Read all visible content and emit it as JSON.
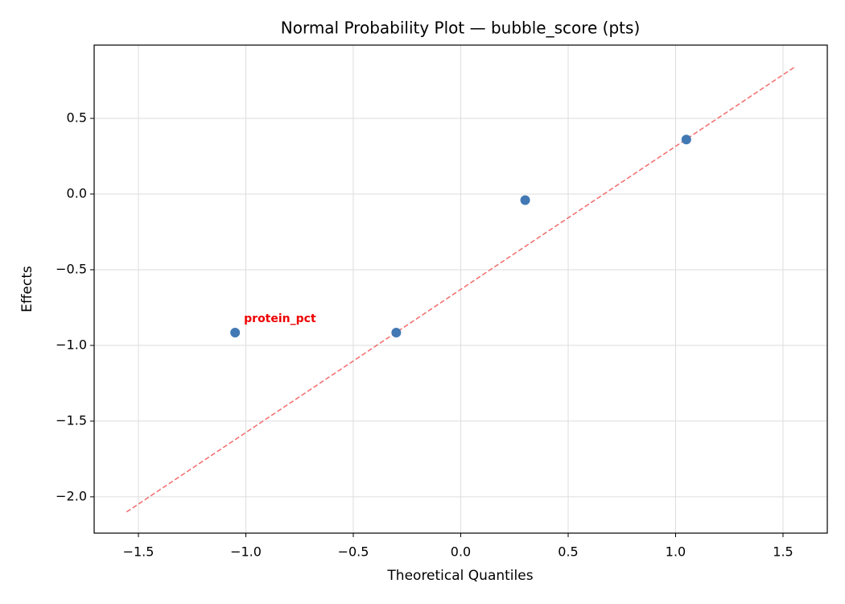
{
  "chart_data": {
    "type": "scatter",
    "title": "Normal Probability Plot — bubble_score (pts)",
    "x_label": "Theoretical Quantiles",
    "y_label": "Effects",
    "x": [
      -1.05,
      -0.3,
      0.3,
      1.05
    ],
    "values": [
      -0.915,
      -0.915,
      -0.04,
      0.36
    ],
    "color": "#4279b4",
    "reference_line": {
      "x": [
        -1.555,
        1.555
      ],
      "values": [
        -2.1,
        0.84
      ],
      "color": "#f26b6b",
      "style": "dashed"
    },
    "annotations": [
      {
        "text": "protein_pct",
        "x": -1.05,
        "y": -0.915,
        "color": "#ee0000"
      }
    ],
    "xlim": [
      -1.706,
      1.706
    ],
    "ylim": [
      -2.24,
      0.984
    ],
    "xticks": [
      {
        "value": -1.5,
        "label": "−1.5"
      },
      {
        "value": -1.0,
        "label": "−1.0"
      },
      {
        "value": -0.5,
        "label": "−0.5"
      },
      {
        "value": 0,
        "label": "0.0"
      },
      0.5,
      {
        "value": 1.0,
        "label": "1.0"
      },
      1.5
    ],
    "yticks": [
      {
        "value": -2.0,
        "label": "−2.0"
      },
      {
        "value": -1.5,
        "label": "−1.5"
      },
      {
        "value": -1.0,
        "label": "−1.0"
      },
      {
        "value": -0.5,
        "label": "−0.5"
      },
      {
        "value": 0,
        "label": "0.0"
      },
      0.5
    ],
    "grid": true
  }
}
